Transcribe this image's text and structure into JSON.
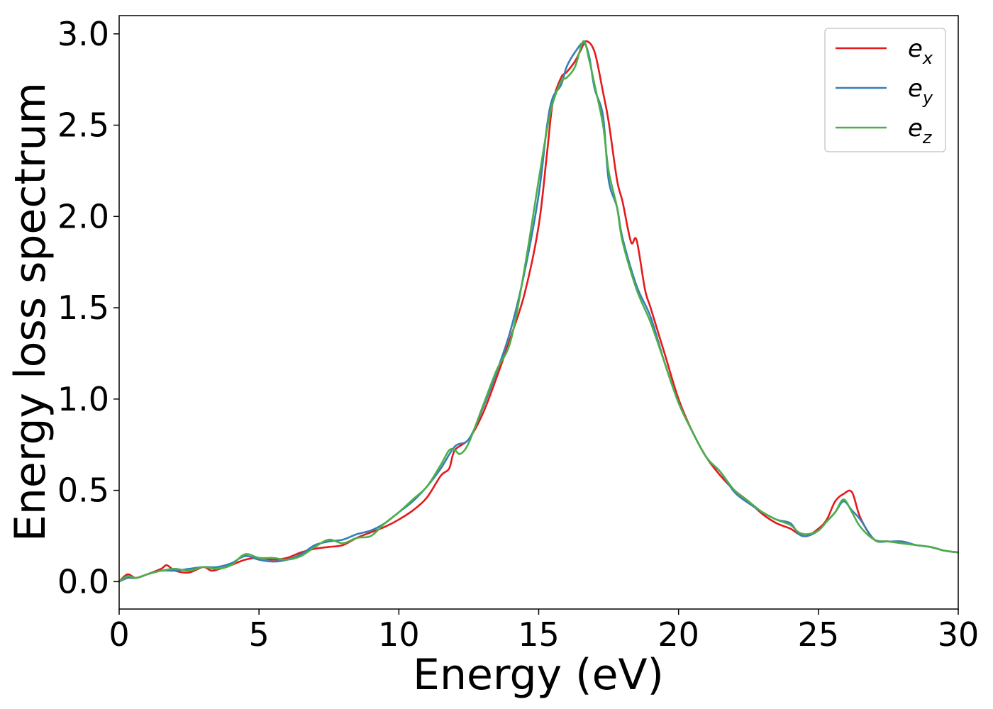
{
  "chart_data": {
    "type": "line",
    "xlabel": "Energy (eV)",
    "ylabel": "Energy loss spectrum",
    "xlim": [
      0,
      30
    ],
    "ylim": [
      -0.15,
      3.1
    ],
    "xticks": [
      0,
      5,
      10,
      15,
      20,
      25,
      30
    ],
    "xtick_labels": [
      "0",
      "5",
      "10",
      "15",
      "20",
      "25",
      "30"
    ],
    "yticks": [
      0.0,
      0.5,
      1.0,
      1.5,
      2.0,
      2.5,
      3.0
    ],
    "ytick_labels": [
      "0.0",
      "0.5",
      "1.0",
      "1.5",
      "2.0",
      "2.5",
      "3.0"
    ],
    "grid": false,
    "legend_position": "top-right",
    "series": [
      {
        "name": "e_x",
        "label_base": "e",
        "label_sub": "x",
        "color": "#e41a1c",
        "x": [
          0,
          0.3,
          0.6,
          1.0,
          1.5,
          1.7,
          2.0,
          2.5,
          3.0,
          3.3,
          3.6,
          4.0,
          4.5,
          5.0,
          5.5,
          6.0,
          6.5,
          7.0,
          7.5,
          8.0,
          8.5,
          9.0,
          9.5,
          10.0,
          10.5,
          11.0,
          11.5,
          11.8,
          12.0,
          12.5,
          13.0,
          13.5,
          14.0,
          14.5,
          15.0,
          15.3,
          15.5,
          15.8,
          16.0,
          16.3,
          16.5,
          16.7,
          17.0,
          17.3,
          17.5,
          17.8,
          18.0,
          18.3,
          18.5,
          18.8,
          19.0,
          19.5,
          20.0,
          20.5,
          21.0,
          21.5,
          22.0,
          22.5,
          23.0,
          23.5,
          24.0,
          24.3,
          24.6,
          25.0,
          25.3,
          25.6,
          25.9,
          26.2,
          26.5,
          27.0,
          27.5,
          28.0,
          28.5,
          29.0,
          29.5,
          30.0
        ],
        "y": [
          0.0,
          0.04,
          0.02,
          0.04,
          0.07,
          0.09,
          0.06,
          0.05,
          0.08,
          0.06,
          0.07,
          0.09,
          0.12,
          0.13,
          0.12,
          0.13,
          0.16,
          0.18,
          0.19,
          0.2,
          0.24,
          0.27,
          0.3,
          0.34,
          0.39,
          0.46,
          0.58,
          0.62,
          0.72,
          0.78,
          0.92,
          1.12,
          1.34,
          1.58,
          1.95,
          2.35,
          2.62,
          2.76,
          2.79,
          2.85,
          2.91,
          2.96,
          2.9,
          2.68,
          2.52,
          2.2,
          2.08,
          1.86,
          1.87,
          1.6,
          1.5,
          1.25,
          1.0,
          0.82,
          0.68,
          0.58,
          0.5,
          0.44,
          0.37,
          0.32,
          0.29,
          0.26,
          0.25,
          0.29,
          0.34,
          0.44,
          0.48,
          0.49,
          0.35,
          0.23,
          0.22,
          0.21,
          0.2,
          0.19,
          0.17,
          0.16
        ]
      },
      {
        "name": "e_y",
        "label_base": "e",
        "label_sub": "y",
        "color": "#377eb8",
        "x": [
          0,
          0.3,
          0.6,
          1.0,
          1.5,
          2.0,
          2.5,
          3.0,
          3.5,
          4.0,
          4.5,
          5.0,
          5.5,
          6.0,
          6.5,
          7.0,
          7.5,
          8.0,
          8.5,
          9.0,
          9.5,
          10.0,
          10.5,
          11.0,
          11.5,
          12.0,
          12.5,
          13.0,
          13.5,
          14.0,
          14.5,
          15.0,
          15.3,
          15.5,
          15.8,
          16.0,
          16.3,
          16.6,
          16.8,
          17.0,
          17.3,
          17.5,
          17.8,
          18.0,
          18.5,
          19.0,
          19.5,
          20.0,
          20.5,
          21.0,
          21.5,
          22.0,
          22.5,
          23.0,
          23.5,
          24.0,
          24.3,
          24.6,
          25.0,
          25.3,
          25.6,
          25.9,
          26.2,
          26.5,
          27.0,
          27.5,
          28.0,
          28.5,
          29.0,
          29.5,
          30.0
        ],
        "y": [
          0.0,
          0.02,
          0.02,
          0.04,
          0.06,
          0.06,
          0.07,
          0.08,
          0.08,
          0.1,
          0.14,
          0.12,
          0.11,
          0.12,
          0.15,
          0.2,
          0.22,
          0.23,
          0.26,
          0.28,
          0.32,
          0.38,
          0.44,
          0.52,
          0.62,
          0.74,
          0.78,
          0.95,
          1.15,
          1.38,
          1.7,
          2.12,
          2.5,
          2.65,
          2.72,
          2.82,
          2.9,
          2.95,
          2.88,
          2.7,
          2.55,
          2.2,
          2.05,
          1.88,
          1.62,
          1.45,
          1.2,
          0.98,
          0.82,
          0.68,
          0.6,
          0.49,
          0.43,
          0.38,
          0.34,
          0.32,
          0.26,
          0.25,
          0.28,
          0.33,
          0.38,
          0.44,
          0.39,
          0.34,
          0.23,
          0.22,
          0.22,
          0.2,
          0.19,
          0.17,
          0.16
        ]
      },
      {
        "name": "e_z",
        "label_base": "e",
        "label_sub": "z",
        "color": "#4daf4a",
        "x": [
          0,
          0.3,
          0.6,
          1.0,
          1.5,
          2.0,
          2.5,
          3.0,
          3.5,
          4.0,
          4.5,
          5.0,
          5.5,
          6.0,
          6.5,
          7.0,
          7.5,
          8.0,
          8.5,
          9.0,
          9.5,
          10.0,
          10.5,
          11.0,
          11.5,
          11.8,
          12.0,
          12.2,
          12.5,
          13.0,
          13.5,
          14.0,
          14.5,
          15.0,
          15.3,
          15.5,
          15.8,
          16.0,
          16.3,
          16.6,
          16.8,
          17.0,
          17.3,
          17.5,
          17.8,
          18.0,
          18.5,
          19.0,
          19.5,
          20.0,
          20.5,
          21.0,
          21.5,
          22.0,
          22.5,
          23.0,
          23.5,
          24.0,
          24.3,
          24.6,
          25.0,
          25.3,
          25.6,
          25.9,
          26.2,
          26.5,
          27.0,
          27.5,
          28.0,
          28.5,
          29.0,
          29.5,
          30.0
        ],
        "y": [
          0.0,
          0.03,
          0.02,
          0.04,
          0.06,
          0.07,
          0.06,
          0.08,
          0.07,
          0.09,
          0.15,
          0.13,
          0.13,
          0.12,
          0.14,
          0.19,
          0.23,
          0.21,
          0.24,
          0.25,
          0.32,
          0.38,
          0.45,
          0.52,
          0.64,
          0.72,
          0.72,
          0.7,
          0.76,
          0.96,
          1.16,
          1.32,
          1.72,
          2.2,
          2.48,
          2.62,
          2.74,
          2.76,
          2.82,
          2.96,
          2.86,
          2.72,
          2.5,
          2.25,
          2.05,
          1.86,
          1.6,
          1.42,
          1.2,
          0.98,
          0.82,
          0.68,
          0.6,
          0.5,
          0.44,
          0.38,
          0.34,
          0.31,
          0.27,
          0.26,
          0.28,
          0.33,
          0.38,
          0.45,
          0.38,
          0.3,
          0.23,
          0.22,
          0.21,
          0.2,
          0.19,
          0.17,
          0.16
        ]
      }
    ]
  }
}
